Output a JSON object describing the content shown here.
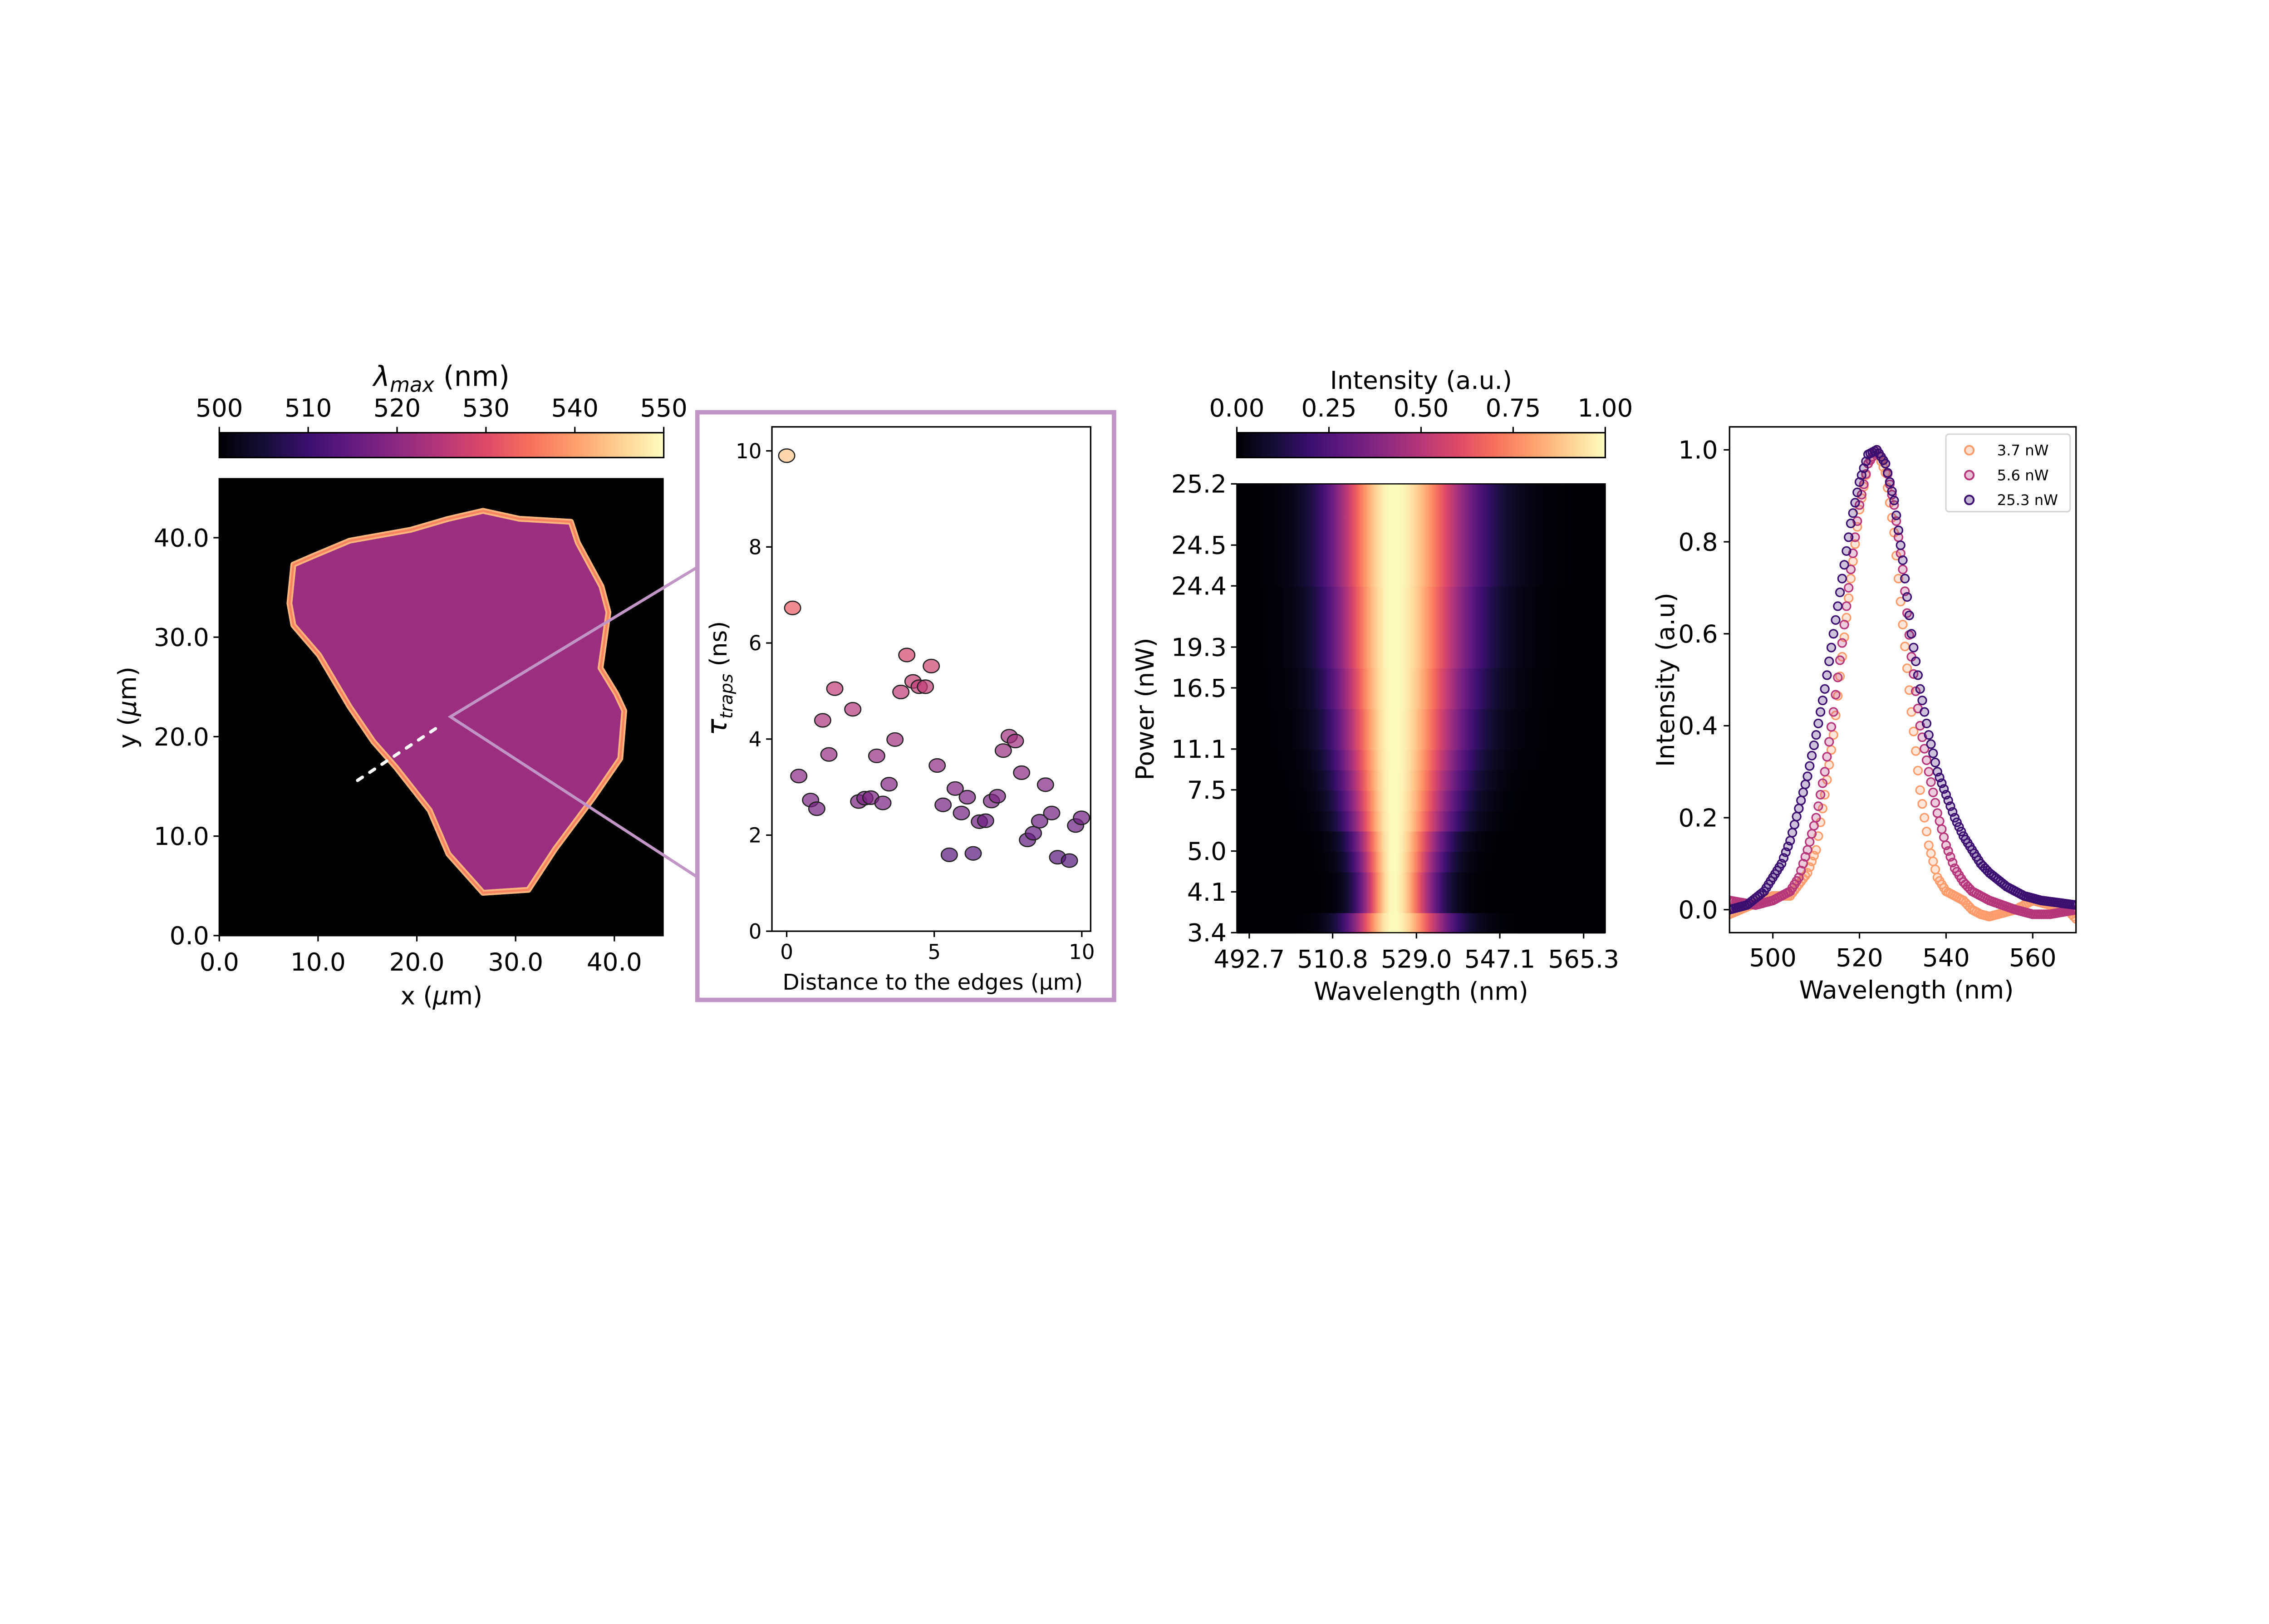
{
  "colors": {
    "zoom_box": "#c196c6",
    "map_interior": "#9b2e7f",
    "map_edge": "#f7835f"
  },
  "colormap": "magma",
  "chart_data": [
    {
      "type": "heatmap",
      "subtype": "spatial map of emission peak wavelength",
      "colorbar": {
        "label_main": "λ",
        "label_sub": "max",
        "label_unit": " (nm)",
        "range": [
          500,
          550
        ],
        "ticks": [
          "500",
          "510",
          "520",
          "530",
          "540",
          "550"
        ]
      },
      "xlabel_main": "x (",
      "xlabel_mu": "μ",
      "xlabel_end": "m)",
      "ylabel_main": "y (",
      "ylabel_mu": "μ",
      "ylabel_end": "m)",
      "xlim": [
        0,
        45
      ],
      "ylim": [
        0,
        46
      ],
      "xticks": [
        0,
        10,
        20,
        30,
        40
      ],
      "xtick_labels": [
        "0.0",
        "10.0",
        "20.0",
        "30.0",
        "40.0"
      ],
      "yticks": [
        0,
        10,
        20,
        30,
        40
      ],
      "ytick_labels": [
        "0.0",
        "10.0",
        "20.0",
        "30.0",
        "40.0"
      ],
      "flake_outline_um": [
        [
          7.5,
          37.3
        ],
        [
          9.6,
          38.2
        ],
        [
          13.2,
          39.7
        ],
        [
          19.4,
          40.8
        ],
        [
          23.2,
          41.9
        ],
        [
          26.7,
          42.7
        ],
        [
          30.4,
          41.9
        ],
        [
          35.6,
          41.6
        ],
        [
          36.3,
          39.5
        ],
        [
          38.7,
          35.1
        ],
        [
          39.4,
          32.5
        ],
        [
          38.6,
          26.9
        ],
        [
          40.2,
          24.3
        ],
        [
          41.0,
          22.6
        ],
        [
          40.6,
          17.8
        ],
        [
          37.9,
          13.9
        ],
        [
          34.0,
          8.7
        ],
        [
          31.3,
          4.6
        ],
        [
          26.7,
          4.3
        ],
        [
          23.2,
          8.2
        ],
        [
          21.3,
          12.6
        ],
        [
          17.9,
          16.9
        ],
        [
          15.6,
          19.5
        ],
        [
          13.2,
          23.0
        ],
        [
          10.1,
          28.2
        ],
        [
          7.5,
          31.2
        ],
        [
          7.1,
          33.4
        ]
      ],
      "interior_wavelength_nm": 523,
      "edge_wavelength_nm": 538,
      "line_scan_um": {
        "start": [
          14.0,
          15.6
        ],
        "end": [
          22.5,
          21.2
        ]
      },
      "zoom_origin_um": [
        23.4,
        22.0
      ]
    },
    {
      "type": "scatter",
      "xlabel": "Distance to the edges (μm)",
      "ylabel_main": "τ",
      "ylabel_sub": "traps",
      "ylabel_unit": " (ns)",
      "xlim": [
        -0.5,
        10.3
      ],
      "ylim": [
        0,
        10.5
      ],
      "xticks": [
        0,
        5,
        10
      ],
      "xtick_labels": [
        "0",
        "5",
        "10"
      ],
      "yticks": [
        0,
        2,
        4,
        6,
        8,
        10
      ],
      "ytick_labels": [
        "0",
        "2",
        "4",
        "6",
        "8",
        "10"
      ],
      "x": [
        0,
        0.2,
        0.41,
        0.81,
        1.02,
        1.22,
        1.43,
        1.63,
        2.24,
        2.44,
        2.65,
        2.85,
        3.05,
        3.26,
        3.47,
        3.67,
        3.87,
        4.07,
        4.28,
        4.49,
        4.7,
        4.9,
        5.1,
        5.3,
        5.51,
        5.71,
        5.92,
        6.12,
        6.32,
        6.53,
        6.74,
        6.94,
        7.14,
        7.34,
        7.54,
        7.75,
        7.96,
        8.16,
        8.36,
        8.57,
        8.77,
        8.98,
        9.18,
        9.58,
        9.79,
        9.99
      ],
      "y": [
        9.9,
        6.73,
        3.23,
        2.73,
        2.55,
        4.39,
        3.68,
        5.05,
        4.62,
        2.7,
        2.77,
        2.78,
        3.65,
        2.67,
        3.06,
        3.99,
        4.98,
        5.75,
        5.2,
        5.09,
        5.09,
        5.52,
        3.45,
        2.63,
        1.59,
        2.97,
        2.46,
        2.79,
        1.62,
        2.28,
        2.3,
        2.71,
        2.81,
        3.76,
        4.06,
        3.96,
        3.3,
        1.9,
        2.04,
        2.29,
        3.05,
        2.46,
        1.54,
        1.47,
        2.2,
        2.36
      ]
    },
    {
      "type": "heatmap",
      "colorbar": {
        "label": "Intensity (a.u.)",
        "range": [
          0,
          1
        ],
        "ticks": [
          "0.00",
          "0.25",
          "0.50",
          "0.75",
          "1.00"
        ]
      },
      "xlabel": "Wavelength (nm)",
      "ylabel": "Power (nW)",
      "xlim": [
        490,
        570
      ],
      "xticks": [
        492.7,
        510.8,
        529.0,
        547.1,
        565.3
      ],
      "xtick_labels": [
        "492.7",
        "510.8",
        "529.0",
        "547.1",
        "565.3"
      ],
      "n_rows": 22,
      "ytick_rows": [
        0,
        2,
        4,
        7,
        9,
        12,
        14,
        17,
        19,
        22
      ],
      "ytick_labels": [
        "3.4",
        "4.1",
        "5.0",
        "7.5",
        "11.1",
        "16.5",
        "19.3",
        "24.4",
        "24.5",
        "25.2"
      ],
      "peak_nm": 524,
      "row_fwhm_nm": [
        16,
        12,
        12,
        13,
        14,
        16,
        17,
        18,
        19,
        20,
        20,
        21,
        21,
        22,
        22,
        22,
        22,
        23,
        23,
        23,
        23,
        23
      ]
    },
    {
      "type": "scatter",
      "xlabel": "Wavelength (nm)",
      "ylabel": "Intensity (a.u)",
      "xlim": [
        490,
        570
      ],
      "ylim": [
        -0.05,
        1.05
      ],
      "xticks": [
        500,
        520,
        540,
        560
      ],
      "xtick_labels": [
        "500",
        "520",
        "540",
        "560"
      ],
      "yticks": [
        0,
        0.2,
        0.4,
        0.6,
        0.8,
        1.0
      ],
      "ytick_labels": [
        "0.0",
        "0.2",
        "0.4",
        "0.6",
        "0.8",
        "1.0"
      ],
      "legend_position": "top-right",
      "series": [
        {
          "name": "3.7 nW",
          "color": "#fc9c6c",
          "x": [
            490,
            500,
            504,
            508,
            510,
            512,
            514,
            516,
            518,
            520,
            522,
            524,
            526,
            528,
            530,
            532,
            534,
            536,
            538,
            540,
            542,
            544,
            546,
            548,
            550,
            552,
            556,
            560,
            564,
            568,
            570
          ],
          "y": [
            -0.01,
            0.03,
            0.03,
            0.08,
            0.13,
            0.25,
            0.38,
            0.55,
            0.72,
            0.87,
            0.97,
            1.0,
            0.95,
            0.82,
            0.62,
            0.43,
            0.26,
            0.14,
            0.07,
            0.04,
            0.03,
            0.02,
            0.0,
            -0.01,
            -0.015,
            -0.01,
            0.0,
            0.02,
            0.01,
            0.0,
            -0.02
          ]
        },
        {
          "name": "5.6 nW",
          "color": "#b5367a",
          "x": [
            490,
            496,
            500,
            504,
            506,
            508,
            510,
            512,
            514,
            516,
            518,
            520,
            522,
            524,
            526,
            528,
            530,
            532,
            534,
            536,
            538,
            540,
            542,
            544,
            546,
            550,
            556,
            560,
            564,
            570
          ],
          "y": [
            0.02,
            0.01,
            0.02,
            0.04,
            0.07,
            0.13,
            0.2,
            0.3,
            0.43,
            0.58,
            0.74,
            0.88,
            0.97,
            1.0,
            0.97,
            0.88,
            0.74,
            0.55,
            0.4,
            0.3,
            0.21,
            0.14,
            0.09,
            0.06,
            0.04,
            0.02,
            0.0,
            -0.01,
            -0.01,
            0.0
          ]
        },
        {
          "name": "25.3 nW",
          "color": "#3b0f70",
          "x": [
            490,
            494,
            498,
            500,
            502,
            504,
            506,
            508,
            510,
            512,
            514,
            516,
            518,
            520,
            522,
            524,
            526,
            528,
            530,
            532,
            534,
            536,
            538,
            540,
            542,
            544,
            546,
            548,
            550,
            554,
            558,
            562,
            566,
            570
          ],
          "y": [
            0.0,
            0.01,
            0.04,
            0.07,
            0.1,
            0.15,
            0.22,
            0.29,
            0.38,
            0.48,
            0.6,
            0.72,
            0.84,
            0.93,
            0.99,
            1.0,
            0.97,
            0.89,
            0.76,
            0.6,
            0.48,
            0.38,
            0.3,
            0.25,
            0.2,
            0.16,
            0.13,
            0.1,
            0.08,
            0.05,
            0.03,
            0.02,
            0.015,
            0.01
          ]
        }
      ]
    }
  ]
}
